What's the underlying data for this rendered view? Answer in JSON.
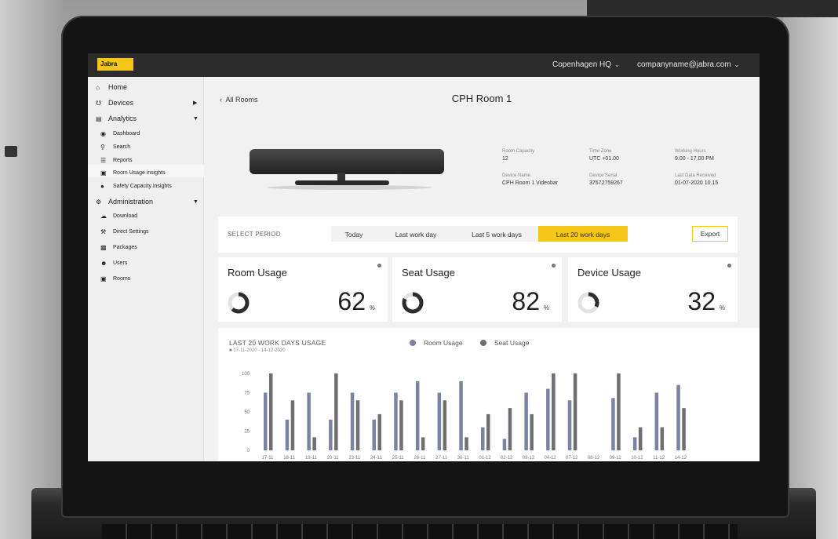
{
  "app": {
    "logo_text": "Jabra",
    "site": "Copenhagen HQ",
    "account": "companyname@jabra.com"
  },
  "sidebar": {
    "items": [
      {
        "label": "Home",
        "icon": "home-icon"
      },
      {
        "label": "Devices",
        "icon": "headset-icon"
      },
      {
        "label": "Analytics",
        "icon": "bar-chart-icon"
      },
      {
        "label": "Dashboard",
        "icon": "dashboard-icon"
      },
      {
        "label": "Search",
        "icon": "search-icon"
      },
      {
        "label": "Reports",
        "icon": "reports-icon"
      },
      {
        "label": "Room Usage insights",
        "icon": "room-icon"
      },
      {
        "label": "Safety Capacity insights",
        "icon": "safety-icon"
      },
      {
        "label": "Administration",
        "icon": "gears-icon"
      },
      {
        "label": "Download",
        "icon": "cloud-download-icon"
      },
      {
        "label": "Direct Settings",
        "icon": "wrench-icon"
      },
      {
        "label": "Packages",
        "icon": "box-icon"
      },
      {
        "label": "Users",
        "icon": "users-icon"
      },
      {
        "label": "Rooms",
        "icon": "room-icon"
      }
    ]
  },
  "room": {
    "back_label": "All Rooms",
    "title": "CPH Room 1",
    "details": [
      {
        "label": "Room Capacity",
        "value": "12"
      },
      {
        "label": "Time Zone",
        "value": "UTC +01.00"
      },
      {
        "label": "Working Hours",
        "value": "9.00 - 17.00 PM"
      },
      {
        "label": "Device Name",
        "value": "CPH Room 1 Videobar"
      },
      {
        "label": "Device Serial",
        "value": "37572759267"
      },
      {
        "label": "Last Data Received",
        "value": "01-07-2020 10.15"
      }
    ]
  },
  "period": {
    "label": "SELECT PERIOD",
    "tabs": [
      "Today",
      "Last work day",
      "Last 5 work days",
      "Last 20 work days"
    ],
    "active_tab": "Last 20 work days",
    "export_label": "Export"
  },
  "metrics": [
    {
      "title": "Room Usage",
      "value": "62",
      "unit": "%",
      "fraction": 0.62
    },
    {
      "title": "Seat Usage",
      "value": "82",
      "unit": "%",
      "fraction": 0.82
    },
    {
      "title": "Device Usage",
      "value": "32",
      "unit": "%",
      "fraction": 0.32
    }
  ],
  "chart_data": {
    "type": "bar",
    "title": "LAST 20 WORK DAYS USAGE",
    "subtitle": "17-11-2020 - 14-12-2020",
    "categories": [
      "17-11",
      "18-11",
      "19-11",
      "20-11",
      "23-11",
      "24-11",
      "25-11",
      "26-11",
      "27-11",
      "30-11",
      "01-12",
      "02-12",
      "03-12",
      "04-12",
      "07-12",
      "08-12",
      "09-12",
      "10-12",
      "11-12",
      "14-12"
    ],
    "series": [
      {
        "name": "Room Usage",
        "color": "#7b82a3",
        "values": [
          75,
          40,
          75,
          40,
          75,
          40,
          75,
          90,
          75,
          90,
          30,
          15,
          75,
          80,
          65,
          0,
          68,
          17,
          75,
          85
        ]
      },
      {
        "name": "Seat Usage",
        "color": "#6e6e73",
        "values": [
          100,
          65,
          17,
          100,
          65,
          47,
          65,
          17,
          65,
          17,
          47,
          55,
          47,
          100,
          100,
          0,
          100,
          30,
          30,
          55
        ]
      }
    ],
    "y_ticks": [
      "100",
      "75",
      "50",
      "25",
      "0"
    ],
    "ylim": [
      0,
      100
    ],
    "legend_position": "top"
  },
  "colors": {
    "accent": "#f5c518",
    "topbar": "#2c2c2c"
  }
}
